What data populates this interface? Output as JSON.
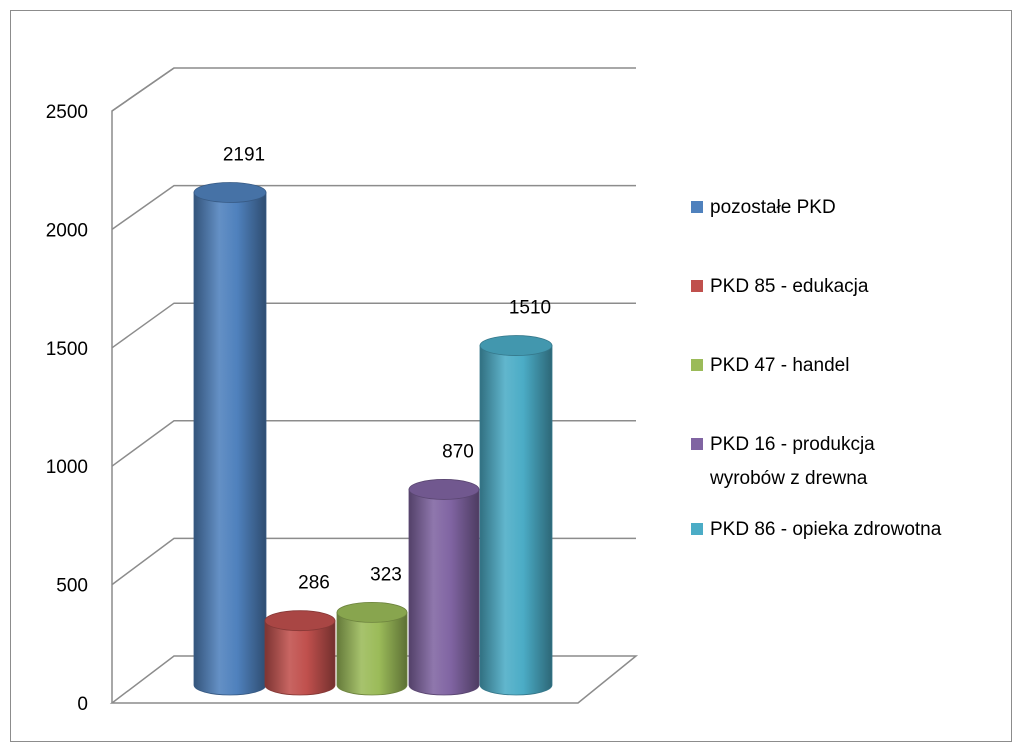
{
  "chart_data": {
    "type": "bar",
    "variant": "3d-cylinder",
    "title": "",
    "xlabel": "",
    "ylabel": "",
    "ylim": [
      0,
      2500
    ],
    "yticks": [
      0,
      500,
      1000,
      1500,
      2000,
      2500
    ],
    "grid": true,
    "legend_position": "right",
    "series": [
      {
        "name": "pozostałe PKD",
        "value": 2191,
        "label": "2191",
        "color": "#4f81bd"
      },
      {
        "name": "PKD 85 - edukacja",
        "value": 286,
        "label": "286",
        "color": "#c0504d"
      },
      {
        "name": "PKD 47 - handel",
        "value": 323,
        "label": "323",
        "color": "#9bbb59"
      },
      {
        "name": "PKD 16 - produkcja wyrobów z drewna",
        "legend_lines": [
          "PKD 16 - produkcja",
          "wyrobów z drewna"
        ],
        "value": 870,
        "label": "870",
        "color": "#8064a2"
      },
      {
        "name": "PKD 86 - opieka zdrowotna",
        "value": 1510,
        "label": "1510",
        "color": "#4bacc6"
      }
    ]
  }
}
